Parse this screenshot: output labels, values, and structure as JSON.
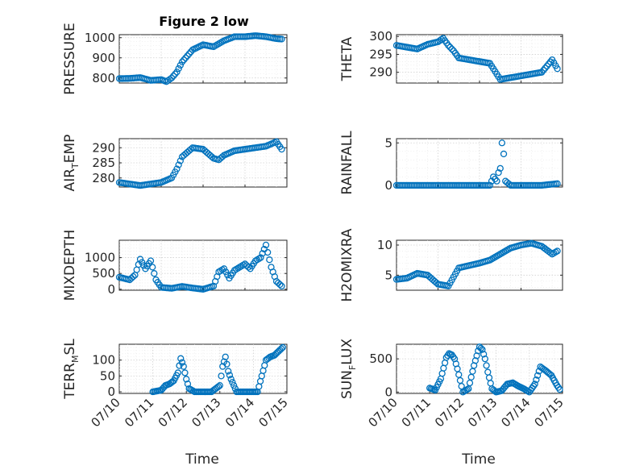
{
  "title": "Figure 2 low",
  "xlabel": "Time",
  "colors": {
    "marker": "#0072bd",
    "axes": "#262626",
    "grid": "#d0d0d0"
  },
  "chart_data": [
    {
      "type": "scatter",
      "title": "Figure 2 low",
      "ylabel": {
        "base": "PRESSURE",
        "sub": "",
        "tail": ""
      },
      "yticks": [
        800,
        900,
        1000
      ],
      "ylim": [
        775,
        1015
      ],
      "xlim": [
        "07/11",
        "07/15"
      ],
      "series": [
        {
          "x": [
            "07/11 00:00",
            "07/11 06:00",
            "07/11 12:00",
            "07/11 18:00",
            "07/12 00:00",
            "07/12 03:00",
            "07/12 06:00",
            "07/12 09:00",
            "07/12 12:00",
            "07/12 18:00",
            "07/13 00:00",
            "07/13 06:00",
            "07/13 12:00",
            "07/13 18:00",
            "07/14 00:00",
            "07/14 06:00",
            "07/14 12:00",
            "07/14 18:00",
            "07/14 21:00"
          ],
          "y": [
            797,
            798,
            802,
            788,
            792,
            782,
            800,
            830,
            880,
            940,
            965,
            955,
            985,
            1005,
            1005,
            1010,
            1005,
            995,
            993
          ]
        }
      ]
    },
    {
      "type": "scatter",
      "ylabel": {
        "base": "THETA",
        "sub": "",
        "tail": ""
      },
      "yticks": [
        290,
        295,
        300
      ],
      "ylim": [
        287,
        300.5
      ],
      "xlim": [
        "07/11",
        "07/15"
      ],
      "series": [
        {
          "x": [
            "07/11 00:00",
            "07/11 06:00",
            "07/11 12:00",
            "07/11 18:00",
            "07/12 00:00",
            "07/12 03:00",
            "07/12 06:00",
            "07/12 09:00",
            "07/12 12:00",
            "07/12 18:00",
            "07/13 00:00",
            "07/13 06:00",
            "07/13 12:00",
            "07/13 18:00",
            "07/14 00:00",
            "07/14 06:00",
            "07/14 12:00",
            "07/14 18:00",
            "07/14 21:00"
          ],
          "y": [
            297.5,
            297,
            296.5,
            297.8,
            298.5,
            299.5,
            297.5,
            296,
            294,
            293.5,
            293,
            292.5,
            288,
            288.5,
            289,
            289.5,
            290,
            293.5,
            291
          ]
        }
      ]
    },
    {
      "type": "scatter",
      "ylabel": {
        "base": "AIR",
        "sub": "T",
        "tail": "EMP"
      },
      "yticks": [
        280,
        285,
        290
      ],
      "ylim": [
        277,
        293
      ],
      "xlim": [
        "07/11",
        "07/15"
      ],
      "series": [
        {
          "x": [
            "07/11 00:00",
            "07/11 06:00",
            "07/11 12:00",
            "07/11 18:00",
            "07/12 00:00",
            "07/12 06:00",
            "07/12 09:00",
            "07/12 12:00",
            "07/12 18:00",
            "07/13 00:00",
            "07/13 06:00",
            "07/13 09:00",
            "07/13 12:00",
            "07/13 18:00",
            "07/14 00:00",
            "07/14 06:00",
            "07/14 12:00",
            "07/14 18:00",
            "07/14 21:00"
          ],
          "y": [
            278.5,
            278,
            277.5,
            278,
            278.5,
            280,
            283,
            287,
            290,
            289.5,
            286.5,
            286,
            287.5,
            289,
            289.5,
            290,
            290.5,
            292,
            289.5
          ]
        }
      ]
    },
    {
      "type": "scatter",
      "ylabel": {
        "base": "RAINFALL",
        "sub": "",
        "tail": ""
      },
      "yticks": [
        0,
        5
      ],
      "ylim": [
        -0.2,
        5.5
      ],
      "xlim": [
        "07/11",
        "07/15"
      ],
      "series": [
        {
          "x": [
            "07/11 00:00",
            "07/11 12:00",
            "07/12 00:00",
            "07/12 12:00",
            "07/13 00:00",
            "07/13 06:00",
            "07/13 08:00",
            "07/13 10:00",
            "07/13 11:00",
            "07/13 12:00",
            "07/13 13:00",
            "07/13 14:00",
            "07/13 15:00",
            "07/13 18:00",
            "07/14 00:00",
            "07/14 12:00",
            "07/14 21:00"
          ],
          "y": [
            0,
            0,
            0,
            0,
            0,
            0,
            1.0,
            0.5,
            1.5,
            2.0,
            5.0,
            3.7,
            0.5,
            0,
            0,
            0,
            0.2
          ]
        }
      ]
    },
    {
      "type": "scatter",
      "ylabel": {
        "base": "MIXDEPTH",
        "sub": "",
        "tail": ""
      },
      "yticks": [
        0,
        500,
        1000
      ],
      "ylim": [
        -30,
        1550
      ],
      "xlim": [
        "07/11",
        "07/15"
      ],
      "series": [
        {
          "x": [
            "07/11 00:00",
            "07/11 06:00",
            "07/11 09:00",
            "07/11 12:00",
            "07/11 15:00",
            "07/11 18:00",
            "07/11 21:00",
            "07/12 00:00",
            "07/12 06:00",
            "07/12 12:00",
            "07/12 18:00",
            "07/13 00:00",
            "07/13 06:00",
            "07/13 09:00",
            "07/13 12:00",
            "07/13 15:00",
            "07/13 18:00",
            "07/14 00:00",
            "07/14 03:00",
            "07/14 06:00",
            "07/14 09:00",
            "07/14 12:00",
            "07/14 15:00",
            "07/14 18:00",
            "07/14 21:00"
          ],
          "y": [
            380,
            300,
            450,
            950,
            650,
            900,
            300,
            60,
            30,
            90,
            40,
            0,
            100,
            550,
            650,
            350,
            600,
            800,
            650,
            900,
            1000,
            1400,
            700,
            250,
            100
          ]
        }
      ]
    },
    {
      "type": "scatter",
      "ylabel": {
        "base": "H2OMIXRA",
        "sub": "",
        "tail": ""
      },
      "yticks": [
        5,
        10
      ],
      "ylim": [
        2.5,
        10.8
      ],
      "xlim": [
        "07/11",
        "07/15"
      ],
      "series": [
        {
          "x": [
            "07/11 00:00",
            "07/11 06:00",
            "07/11 12:00",
            "07/11 18:00",
            "07/12 00:00",
            "07/12 06:00",
            "07/12 12:00",
            "07/12 18:00",
            "07/13 00:00",
            "07/13 06:00",
            "07/13 12:00",
            "07/13 18:00",
            "07/14 00:00",
            "07/14 06:00",
            "07/14 12:00",
            "07/14 18:00",
            "07/14 21:00"
          ],
          "y": [
            4.3,
            4.5,
            5.3,
            5.0,
            3.5,
            3.2,
            6.2,
            6.6,
            7.0,
            7.5,
            8.5,
            9.5,
            10.0,
            10.3,
            9.8,
            8.5,
            9.0
          ]
        }
      ]
    },
    {
      "type": "scatter",
      "ylabel": {
        "base": "TERR",
        "sub": "M",
        "tail": "SL"
      },
      "yticks": [
        0,
        50,
        100
      ],
      "ylim": [
        -5,
        150
      ],
      "xlim": [
        "07/10",
        "07/15"
      ],
      "xticks": [
        "07/10",
        "07/11",
        "07/12",
        "07/13",
        "07/14",
        "07/15"
      ],
      "series": [
        {
          "x": [
            "07/11 00:00",
            "07/11 06:00",
            "07/11 09:00",
            "07/11 12:00",
            "07/11 15:00",
            "07/11 18:00",
            "07/11 20:00",
            "07/11 22:00",
            "07/12 00:00",
            "07/12 02:00",
            "07/12 06:00",
            "07/12 12:00",
            "07/12 18:00",
            "07/13 00:00",
            "07/13 02:00",
            "07/13 04:00",
            "07/13 06:00",
            "07/13 08:00",
            "07/13 12:00",
            "07/13 18:00",
            "07/14 00:00",
            "07/14 03:00",
            "07/14 06:00",
            "07/14 09:00",
            "07/14 12:00",
            "07/14 15:00",
            "07/14 21:00"
          ],
          "y": [
            0,
            5,
            20,
            25,
            35,
            60,
            105,
            80,
            40,
            10,
            0,
            0,
            0,
            20,
            80,
            110,
            65,
            40,
            0,
            0,
            0,
            0,
            50,
            100,
            110,
            115,
            140
          ]
        }
      ]
    },
    {
      "type": "scatter",
      "ylabel": {
        "base": "SUN",
        "sub": "F",
        "tail": "LUX"
      },
      "yticks": [
        0,
        500
      ],
      "ylim": [
        -20,
        720
      ],
      "xlim": [
        "07/10",
        "07/15"
      ],
      "xticks": [
        "07/10",
        "07/11",
        "07/12",
        "07/13",
        "07/14",
        "07/15"
      ],
      "series": [
        {
          "x": [
            "07/11 00:00",
            "07/11 04:00",
            "07/11 08:00",
            "07/11 12:00",
            "07/11 14:00",
            "07/11 16:00",
            "07/11 18:00",
            "07/11 20:00",
            "07/12 00:00",
            "07/12 04:00",
            "07/12 08:00",
            "07/12 11:00",
            "07/12 12:00",
            "07/12 14:00",
            "07/12 16:00",
            "07/12 18:00",
            "07/12 21:00",
            "07/13 00:00",
            "07/13 04:00",
            "07/13 08:00",
            "07/13 12:00",
            "07/13 16:00",
            "07/13 20:00",
            "07/14 00:00",
            "07/14 04:00",
            "07/14 08:00",
            "07/14 12:00",
            "07/14 16:00",
            "07/14 20:00",
            "07/14 22:00"
          ],
          "y": [
            60,
            30,
            200,
            520,
            580,
            560,
            500,
            350,
            0,
            50,
            400,
            620,
            680,
            640,
            500,
            300,
            50,
            0,
            20,
            120,
            140,
            90,
            50,
            0,
            120,
            380,
            320,
            250,
            100,
            40
          ]
        }
      ]
    }
  ]
}
